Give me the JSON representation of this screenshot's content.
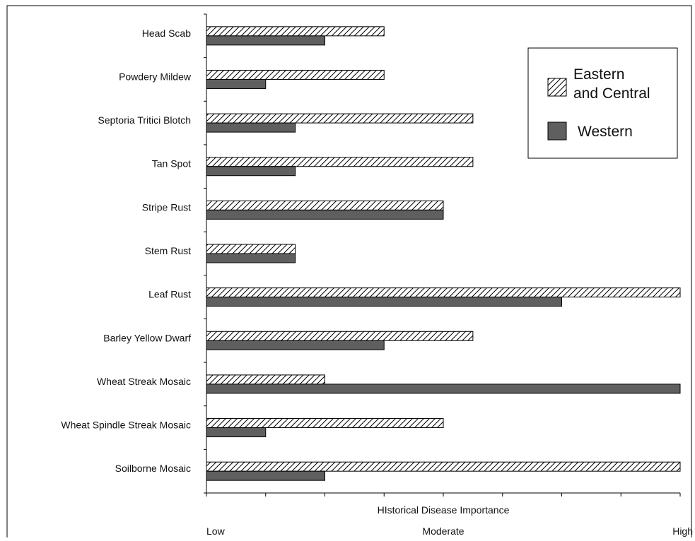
{
  "chart_data": {
    "type": "bar",
    "orientation": "horizontal",
    "title": "",
    "xlabel": "HIstorical Disease Importance",
    "ylabel": "",
    "x_level_labels": [
      "Low",
      "Moderate",
      "High"
    ],
    "xlim": [
      0,
      8
    ],
    "x_minor_ticks": 8,
    "grid": false,
    "legend_position": "top-right",
    "categories": [
      "Head Scab",
      "Powdery Mildew",
      "Septoria Tritici Blotch",
      "Tan Spot",
      "Stripe Rust",
      "Stem Rust",
      "Leaf Rust",
      "Barley Yellow Dwarf",
      "Wheat Streak Mosaic",
      "Wheat Spindle Streak Mosaic",
      "Soilborne Mosaic"
    ],
    "series": [
      {
        "name": "Eastern and Central",
        "legend_lines": [
          "Eastern",
          "and Central"
        ],
        "fill": "hatched",
        "color": "#ffffff",
        "stroke": "#000000",
        "values": [
          3,
          3,
          4.5,
          4.5,
          4,
          1.5,
          8,
          4.5,
          2,
          4,
          8
        ]
      },
      {
        "name": "Western",
        "legend_lines": [
          "Western"
        ],
        "fill": "solid",
        "color": "#5f5f5f",
        "stroke": "#000000",
        "values": [
          2,
          1,
          1.5,
          1.5,
          4,
          1.5,
          6,
          3,
          8,
          1,
          2
        ]
      }
    ]
  }
}
